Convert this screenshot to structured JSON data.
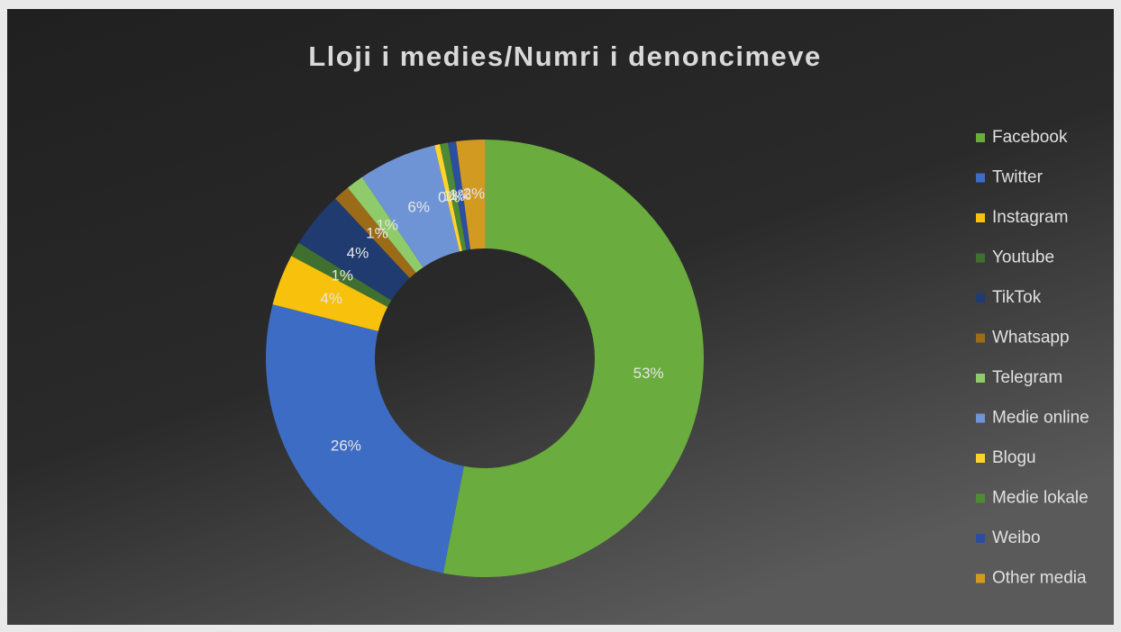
{
  "chart_data": {
    "type": "donut",
    "title": "Lloji i medies/Numri i denoncimeve",
    "categories": [
      "Facebook",
      "Twitter",
      "Instagram",
      "Youtube",
      "TikTok",
      "Whatsapp",
      "Telegram",
      "Medie online",
      "Blogu",
      "Medie lokale",
      "Weibo",
      "Other media"
    ],
    "values": [
      53.2,
      26,
      3.8,
      1.1,
      4.2,
      1.2,
      1.3,
      5.8,
      0.4,
      0.6,
      0.6,
      2.1
    ],
    "value_labels": [
      "53%",
      "26%",
      "4%",
      "1%",
      "4%",
      "1%",
      "1%",
      "6%",
      "0%",
      "1%",
      "1%",
      "2%"
    ],
    "colors": [
      "#6aac3d",
      "#3d6cc4",
      "#f7c10c",
      "#3f7030",
      "#203b70",
      "#9c6b18",
      "#8fcb6a",
      "#6f94d6",
      "#ffd22e",
      "#4e8a34",
      "#2c4e9e",
      "#d39a22"
    ],
    "legend": "right"
  }
}
